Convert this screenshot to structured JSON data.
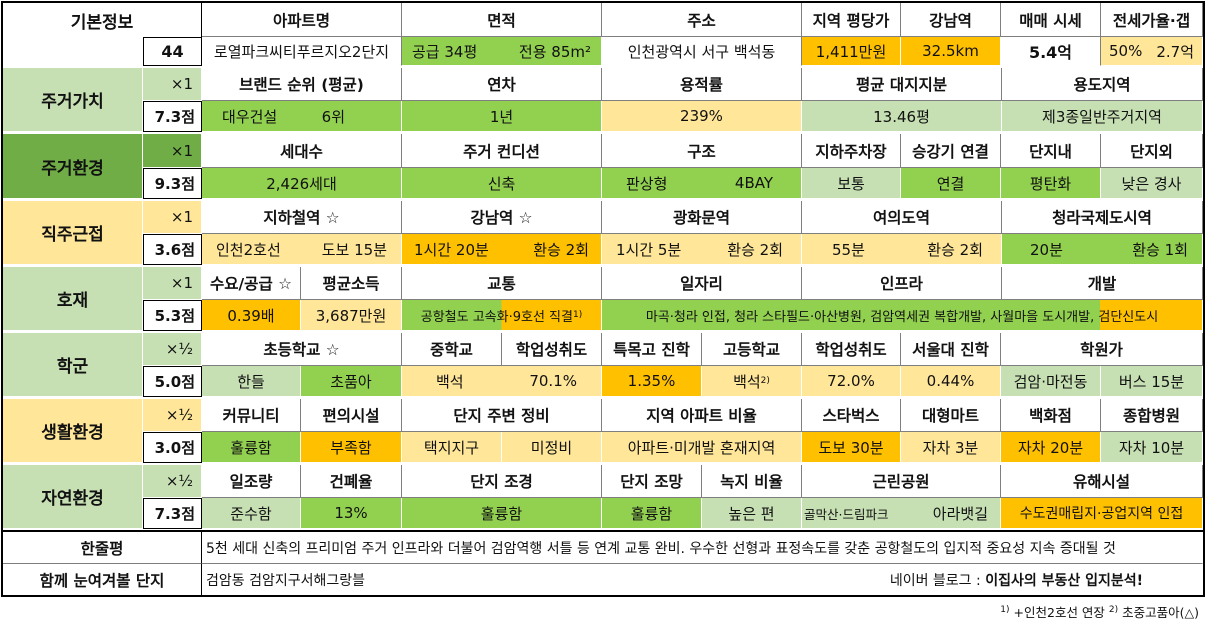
{
  "basic": {
    "label": "기본정보",
    "number": "44",
    "headers": [
      "아파트명",
      "면적",
      "주소",
      "지역 평당가",
      "강남역",
      "매매 시세",
      "전세가율·갭"
    ],
    "apt_name": "로열파크씨티푸르지오2단지",
    "area_supply": "공급 34평",
    "area_exclusive": "전용 85m²",
    "address": "인천광역시 서구 백석동",
    "price_per_pyeong": "1,411만원",
    "gangnam_distance": "32.5km",
    "sale_price": "5.4억",
    "jeonse_ratio": "50%",
    "gap": "2.7억"
  },
  "sections": [
    {
      "key": "living_value",
      "label": "주거가치",
      "multiplier": "×1",
      "score": "7.3점",
      "headers": [
        "브랜드 순위 (평균)",
        "연차",
        "용적률",
        "평균 대지지분",
        "용도지역"
      ],
      "values": [
        "대우건설",
        "6위",
        "1년",
        "239%",
        "13.46평",
        "제3종일반주거지역"
      ]
    },
    {
      "key": "living_env",
      "label": "주거환경",
      "multiplier": "×1",
      "score": "9.3점",
      "headers": [
        "세대수",
        "주거 컨디션",
        "구조",
        "지하주차장",
        "승강기 연결",
        "단지내",
        "단지외"
      ],
      "values": [
        "2,426세대",
        "신축",
        "판상형",
        "4BAY",
        "보통",
        "연결",
        "평탄화",
        "낮은 경사"
      ]
    },
    {
      "key": "commute",
      "label": "직주근접",
      "multiplier": "×1",
      "score": "3.6점",
      "headers": [
        "지하철역 ☆",
        "강남역 ☆",
        "광화문역",
        "여의도역",
        "청라국제도시역"
      ],
      "values": [
        "인천2호선",
        "도보 15분",
        "1시간 20분",
        "환승 2회",
        "1시간 5분",
        "환승 2회",
        "55분",
        "환승 2회",
        "20분",
        "환승 1회"
      ]
    },
    {
      "key": "development",
      "label": "호재",
      "multiplier": "×1",
      "score": "5.3점",
      "headers": [
        "수요/공급 ☆",
        "평균소득",
        "교통",
        "일자리",
        "인프라",
        "개발"
      ],
      "values": [
        "0.39배",
        "3,687만원",
        "공항철도 고속화·9호선 직결",
        "마곡·청라 인접, 청라 스타필드·아산병원, 검암역세권 복합개발, 사월마을 도시개발, 검단신도시"
      ]
    },
    {
      "key": "school",
      "label": "학군",
      "multiplier": "×½",
      "score": "5.0점",
      "headers": [
        "초등학교 ☆",
        "중학교",
        "학업성취도",
        "특목고 진학",
        "고등학교",
        "학업성취도",
        "서울대 진학",
        "학원가"
      ],
      "values": [
        "한들",
        "초품아",
        "백석",
        "70.1%",
        "1.35%",
        "백석",
        "72.0%",
        "0.44%",
        "검암·마전동",
        "버스 15분"
      ]
    },
    {
      "key": "life_env",
      "label": "생활환경",
      "multiplier": "×½",
      "score": "3.0점",
      "headers": [
        "커뮤니티",
        "편의시설",
        "단지 주변 정비",
        "지역 아파트 비율",
        "스타벅스",
        "대형마트",
        "백화점",
        "종합병원"
      ],
      "values": [
        "훌륭함",
        "부족함",
        "택지지구",
        "미정비",
        "아파트·미개발 혼재지역",
        "도보 30분",
        "자차 3분",
        "자차 20분",
        "자차 10분"
      ]
    },
    {
      "key": "nature_env",
      "label": "자연환경",
      "multiplier": "×½",
      "score": "7.3점",
      "headers": [
        "일조량",
        "건폐율",
        "단지 조경",
        "단지 조망",
        "녹지 비율",
        "근린공원",
        "유해시설"
      ],
      "values": [
        "준수함",
        "13%",
        "훌륭함",
        "훌륭함",
        "높은 편",
        "골막산·드림파크",
        "아라뱃길",
        "수도권매립지·공업지역 인접"
      ]
    }
  ],
  "footnote_markers": {
    "one": "1)",
    "two": "2)"
  },
  "summary": {
    "label": "한줄평",
    "text": "5천 세대 신축의 프리미엄 주거 인프라와 더불어 검암역행 서틀 등 연계 교통 완비. 우수한 선형과 표정속도를 갖춘 공항철도의 입지적 중요성 지속 증대될 것"
  },
  "related": {
    "label": "함께 눈여겨볼 단지",
    "text": "검암동 검암지구서해그랑블",
    "blog_prefix": "네이버 블로그 : ",
    "blog_name": "이집사의 부동산 입지분석!"
  },
  "footnote": {
    "m1": "1)",
    "t1": " +인천2호선 연장 ",
    "m2": "2)",
    "t2": " 초중고품아(△)"
  }
}
